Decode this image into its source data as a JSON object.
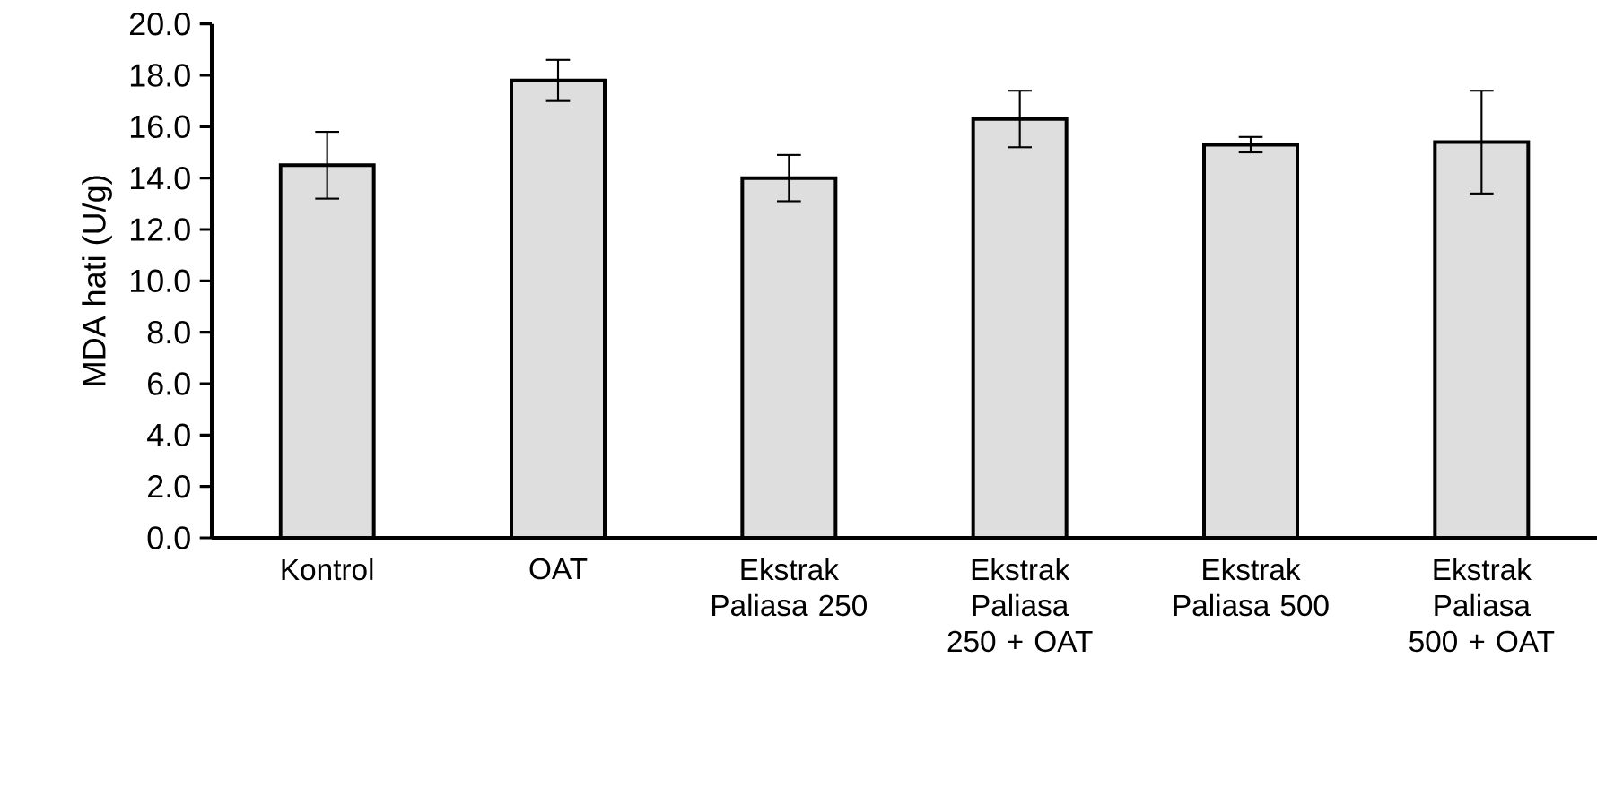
{
  "chart_data": {
    "type": "bar",
    "ylabel": "MDA hati (U/g)",
    "categories": [
      "Kontrol",
      "OAT",
      "Ekstrak Paliasa 250",
      "Ekstrak Paliasa 250 + OAT",
      "Ekstrak Paliasa 500",
      "Ekstrak Paliasa 500 + OAT"
    ],
    "values": [
      14.5,
      17.8,
      14.0,
      16.3,
      15.3,
      15.4
    ],
    "errors": [
      1.3,
      0.8,
      0.9,
      1.1,
      0.3,
      2.0
    ],
    "color": "#dedede",
    "ylim": [
      0,
      20
    ],
    "yticks": [
      {
        "value": 0,
        "label": "0.0"
      },
      {
        "value": 2,
        "label": "2.0"
      },
      {
        "value": 4,
        "label": "4.0"
      },
      {
        "value": 6,
        "label": "6.0"
      },
      {
        "value": 8,
        "label": "8.0"
      },
      {
        "value": 10,
        "label": "10.0"
      },
      {
        "value": 12,
        "label": "12.0"
      },
      {
        "value": 14,
        "label": "14.0"
      },
      {
        "value": 16,
        "label": "16.0"
      },
      {
        "value": 18,
        "label": "18.0"
      },
      {
        "value": 20,
        "label": "20.0"
      }
    ]
  }
}
